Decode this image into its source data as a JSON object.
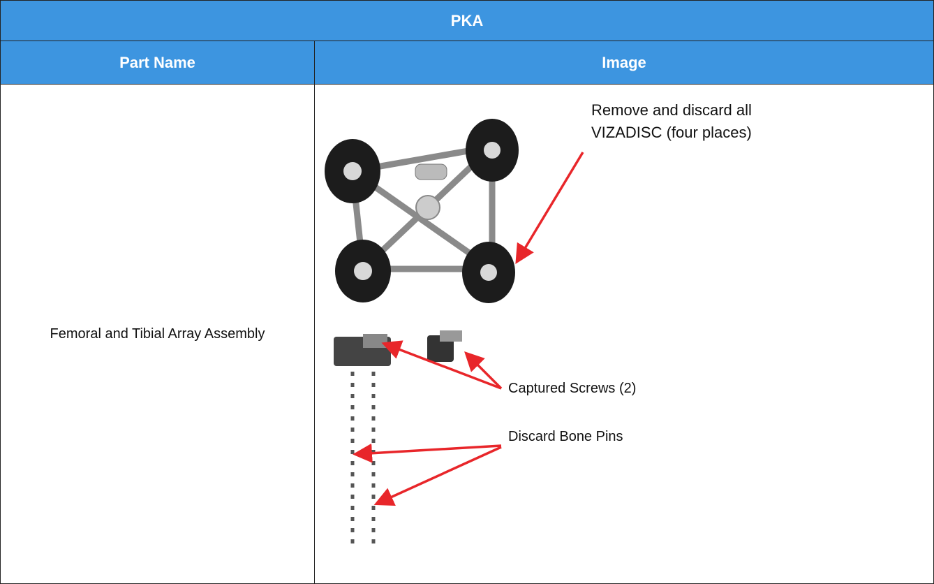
{
  "table": {
    "title": "PKA",
    "headers": [
      "Part Name",
      "Image"
    ],
    "rows": [
      [
        "Femoral and Tibial Array Assembly"
      ]
    ]
  },
  "image": {
    "callouts": [
      "Remove and discard all VIZADISC (four places)",
      "Captured Screws (2)",
      "Discard Bone Pins"
    ]
  }
}
